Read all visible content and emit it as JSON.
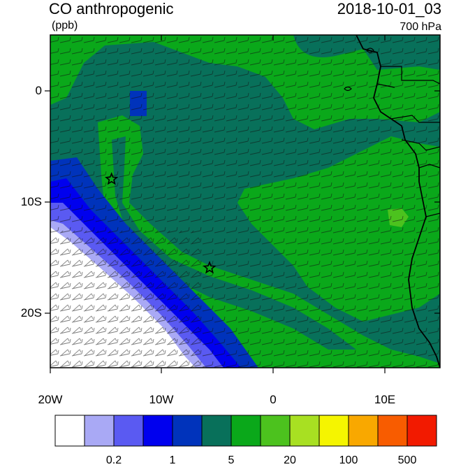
{
  "header": {
    "title": "CO anthropogenic",
    "units": "(ppb)",
    "datetime": "2018-10-01_03",
    "level": "700 hPa"
  },
  "axes": {
    "lat_labels": [
      "0",
      "10S",
      "20S"
    ],
    "lon_labels": [
      "20W",
      "10W",
      "0",
      "10E"
    ]
  },
  "colorbar": {
    "colors": [
      "#ffffff",
      "#a9a9f5",
      "#5a5af2",
      "#0000ee",
      "#0033bb",
      "#08705a",
      "#0aa81a",
      "#4cc21e",
      "#a8e022",
      "#f5f500",
      "#f9a800",
      "#f85c00",
      "#f21a00"
    ],
    "labels": [
      "0.2",
      "1",
      "5",
      "20",
      "100",
      "500"
    ]
  },
  "markers": [
    {
      "name": "star-marker-west",
      "lon": -14.5,
      "lat": -8.0
    },
    {
      "name": "star-marker-central",
      "lon": -5.7,
      "lat": -16.0
    }
  ]
}
